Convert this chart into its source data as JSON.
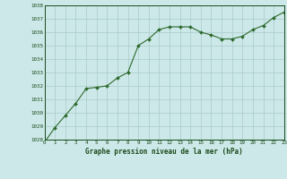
{
  "x": [
    0,
    1,
    2,
    3,
    4,
    5,
    6,
    7,
    8,
    9,
    10,
    11,
    12,
    13,
    14,
    15,
    16,
    17,
    18,
    19,
    20,
    21,
    22,
    23
  ],
  "y": [
    1027.8,
    1028.9,
    1029.8,
    1030.7,
    1031.8,
    1031.9,
    1032.0,
    1032.6,
    1033.0,
    1035.0,
    1035.5,
    1036.2,
    1036.4,
    1036.4,
    1036.4,
    1036.0,
    1035.8,
    1035.5,
    1035.5,
    1035.7,
    1036.2,
    1036.5,
    1037.1,
    1037.5
  ],
  "line_color": "#2d6a2d",
  "marker": "D",
  "marker_size": 2.0,
  "bg_color": "#cce8e8",
  "grid_color": "#aacaca",
  "xlabel": "Graphe pression niveau de la mer (hPa)",
  "xlabel_color": "#1a4a1a",
  "tick_color": "#1a4a1a",
  "ylim": [
    1028,
    1038
  ],
  "xlim": [
    0,
    23
  ],
  "yticks": [
    1028,
    1029,
    1030,
    1031,
    1032,
    1033,
    1034,
    1035,
    1036,
    1037,
    1038
  ],
  "xticks": [
    0,
    1,
    2,
    3,
    4,
    5,
    6,
    7,
    8,
    9,
    10,
    11,
    12,
    13,
    14,
    15,
    16,
    17,
    18,
    19,
    20,
    21,
    22,
    23
  ]
}
